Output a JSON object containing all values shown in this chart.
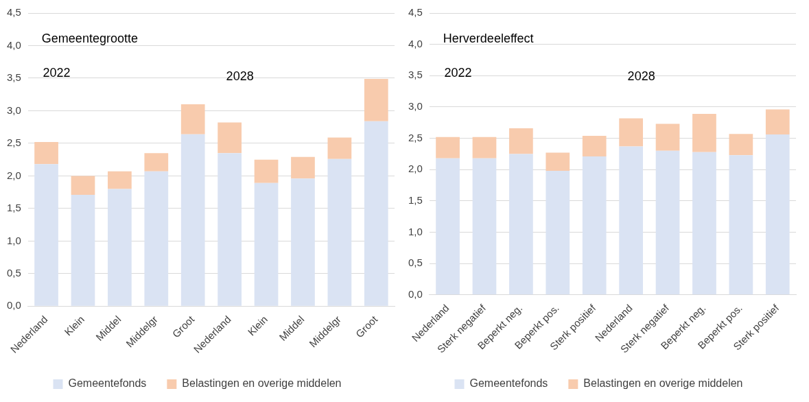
{
  "chart_data": [
    {
      "type": "bar",
      "title": "Gemeentegrootte",
      "annotations": [
        "2022",
        "2028"
      ],
      "stacked": true,
      "grid": "y",
      "legend": "bottom",
      "categories": [
        "Nederland",
        "Klein",
        "Middel",
        "Middelgr",
        "Groot",
        "Nederland",
        "Klein",
        "Middel",
        "Middelgr",
        "Groot"
      ],
      "series": [
        {
          "name": "Gemeentefonds",
          "color": "#dae3f3",
          "values": [
            2.18,
            1.71,
            1.8,
            2.07,
            2.64,
            2.35,
            1.89,
            1.96,
            2.26,
            2.84
          ]
        },
        {
          "name": "Belastingen en overige middelen",
          "color": "#f8cbad",
          "values": [
            0.34,
            0.29,
            0.27,
            0.28,
            0.46,
            0.47,
            0.36,
            0.33,
            0.33,
            0.65
          ]
        }
      ],
      "ylim": [
        0,
        4.5
      ],
      "yticks": [
        {
          "value": 0,
          "label": "0,0"
        },
        {
          "value": 0.5,
          "label": "0,5"
        },
        {
          "value": 1,
          "label": "1,0"
        },
        {
          "value": 1.5,
          "label": "1,5"
        },
        {
          "value": 2,
          "label": "2,0"
        },
        {
          "value": 2.5,
          "label": "2,5"
        },
        {
          "value": 3,
          "label": "3,0"
        },
        {
          "value": 3.5,
          "label": "3,5"
        },
        {
          "value": 4,
          "label": "4,0"
        },
        {
          "value": 4.5,
          "label": "4,5"
        }
      ]
    },
    {
      "type": "bar",
      "title": "Herverdeeleffect",
      "annotations": [
        "2022",
        "2028"
      ],
      "stacked": true,
      "grid": "y",
      "legend": "bottom",
      "categories": [
        "Nederland",
        "Sterk negatief",
        "Beperkt neg.",
        "Beperkt pos.",
        "Sterk positief",
        "Nederland",
        "Sterk negatief",
        "Beperkt neg.",
        "Beperkt pos.",
        "Sterk positief"
      ],
      "series": [
        {
          "name": "Gemeentefonds",
          "color": "#dae3f3",
          "values": [
            2.18,
            2.18,
            2.25,
            1.98,
            2.21,
            2.37,
            2.3,
            2.28,
            2.23,
            2.56
          ]
        },
        {
          "name": "Belastingen en overige middelen",
          "color": "#f8cbad",
          "values": [
            0.34,
            0.34,
            0.41,
            0.29,
            0.33,
            0.45,
            0.43,
            0.61,
            0.34,
            0.4
          ]
        }
      ],
      "ylim": [
        0,
        4.5
      ],
      "yticks": [
        {
          "value": 0,
          "label": "0,0"
        },
        {
          "value": 0.5,
          "label": "0,5"
        },
        {
          "value": 1,
          "label": "1,0"
        },
        {
          "value": 1.5,
          "label": "1,5"
        },
        {
          "value": 2,
          "label": "2,0"
        },
        {
          "value": 2.5,
          "label": "2,5"
        },
        {
          "value": 3,
          "label": "3,0"
        },
        {
          "value": 3.5,
          "label": "3,5"
        },
        {
          "value": 4,
          "label": "4,0"
        },
        {
          "value": 4.5,
          "label": "4,5"
        }
      ]
    }
  ]
}
